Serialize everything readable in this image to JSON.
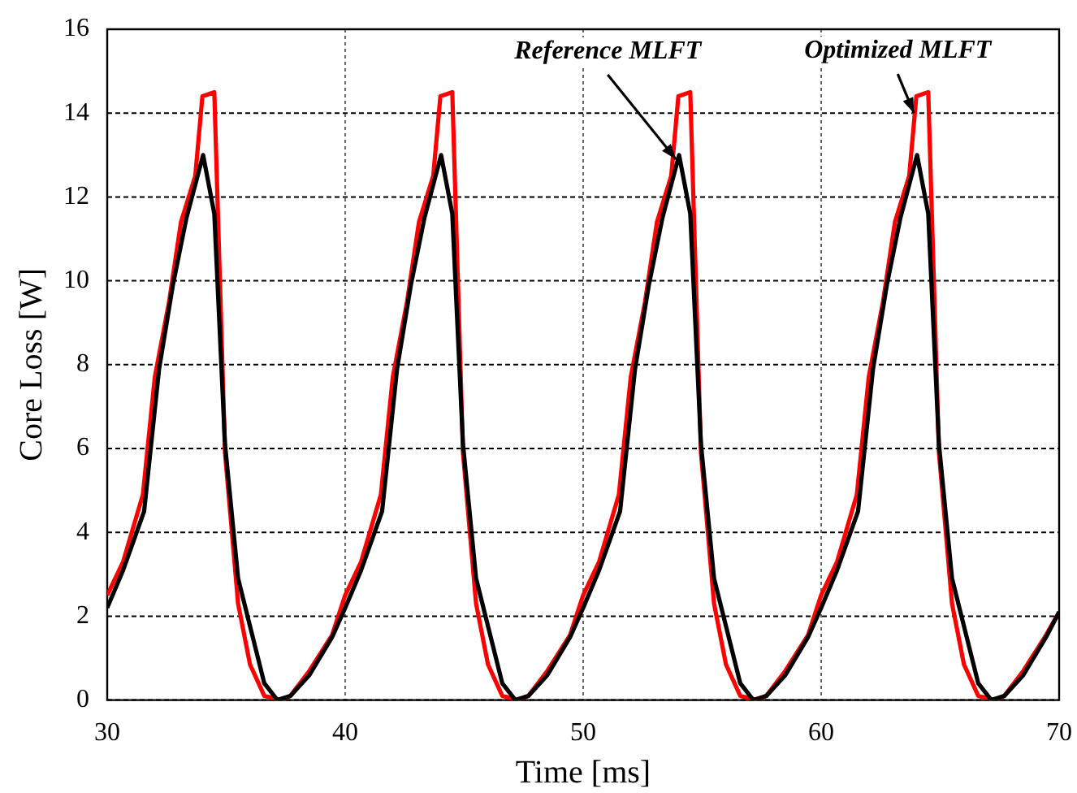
{
  "chart_data": {
    "type": "line",
    "xlabel": "Time [ms]",
    "ylabel": "Core Loss [W]",
    "xlim": [
      30,
      70
    ],
    "xticks": [
      30,
      40,
      50,
      60,
      70
    ],
    "ylim": [
      0,
      16
    ],
    "yticks": [
      0,
      2,
      4,
      6,
      8,
      10,
      12,
      14,
      16
    ],
    "grid": true,
    "legend": false,
    "marker": "none",
    "line_style": "solid",
    "series": [
      {
        "color": "#000000",
        "x": [
          30,
          30.67,
          31.55,
          32.18,
          32.76,
          33.33,
          34.03,
          34.5,
          34.95,
          35.5,
          36.6,
          37.15,
          37.7,
          38.5,
          39.45,
          40,
          40.67,
          41.55,
          42.18,
          42.76,
          43.33,
          44.03,
          44.5,
          44.95,
          45.5,
          46.6,
          47.15,
          47.7,
          48.5,
          49.45,
          50,
          50.67,
          51.55,
          52.18,
          52.76,
          53.33,
          54.03,
          54.5,
          54.95,
          55.5,
          56.6,
          57.15,
          57.7,
          58.5,
          59.45,
          60,
          60.67,
          61.55,
          62.18,
          62.76,
          63.33,
          64.03,
          64.5,
          64.95,
          65.5,
          66.6,
          67.15,
          67.7,
          68.5,
          69.45,
          70
        ],
        "values": [
          2.2,
          3.1,
          4.5,
          7.9,
          9.9,
          11.5,
          13.0,
          11.6,
          6.1,
          2.9,
          0.4,
          0.0,
          0.1,
          0.6,
          1.5,
          2.2,
          3.1,
          4.5,
          7.9,
          9.9,
          11.5,
          13.0,
          11.6,
          6.1,
          2.9,
          0.4,
          0.0,
          0.1,
          0.6,
          1.5,
          2.2,
          3.1,
          4.5,
          7.9,
          9.9,
          11.5,
          13.0,
          11.6,
          6.1,
          2.9,
          0.4,
          0.0,
          0.1,
          0.6,
          1.5,
          2.2,
          3.1,
          4.5,
          7.9,
          9.9,
          11.5,
          13.0,
          11.6,
          6.1,
          2.9,
          0.4,
          0.0,
          0.1,
          0.6,
          1.5,
          2.1
        ]
      },
      {
        "color": "#ff0000",
        "x": [
          30,
          30.67,
          31.5,
          32,
          32.6,
          33.1,
          33.7,
          34,
          34.5,
          34.95,
          35.5,
          36,
          36.6,
          37.3,
          37.7,
          38.5,
          39.45,
          40,
          40.67,
          41.5,
          42,
          42.6,
          43.1,
          43.7,
          44,
          44.5,
          44.95,
          45.5,
          46,
          46.6,
          47.3,
          47.7,
          48.5,
          49.45,
          50,
          50.67,
          51.5,
          52,
          52.6,
          53.1,
          53.7,
          54,
          54.5,
          54.95,
          55.5,
          56,
          56.6,
          57.3,
          57.7,
          58.5,
          59.45,
          60,
          60.67,
          61.5,
          62,
          62.6,
          63.1,
          63.7,
          64,
          64.5,
          64.95,
          65.5,
          66,
          66.6,
          67.3,
          67.7,
          68.5,
          69.45,
          70
        ],
        "values": [
          2.5,
          3.3,
          4.9,
          7.7,
          9.5,
          11.4,
          12.5,
          14.4,
          14.5,
          5.9,
          2.3,
          0.85,
          0.1,
          0.0,
          0.1,
          0.7,
          1.55,
          2.5,
          3.3,
          4.9,
          7.7,
          9.5,
          11.4,
          12.5,
          14.4,
          14.5,
          5.9,
          2.3,
          0.85,
          0.1,
          0.0,
          0.1,
          0.7,
          1.55,
          2.5,
          3.3,
          4.9,
          7.7,
          9.5,
          11.4,
          12.5,
          14.4,
          14.5,
          5.9,
          2.3,
          0.85,
          0.1,
          0.0,
          0.1,
          0.7,
          1.55,
          2.5,
          3.3,
          4.9,
          7.7,
          9.5,
          11.4,
          12.5,
          14.4,
          14.5,
          5.9,
          2.3,
          0.85,
          0.1,
          0.0,
          0.1,
          0.7,
          1.55,
          2.1
        ]
      }
    ],
    "annotations": [
      {
        "text": "Reference MLFT",
        "x": 53.9,
        "y": 12.9
      },
      {
        "text": "Optimized MLFT",
        "x": 63.9,
        "y": 14.0
      }
    ]
  }
}
